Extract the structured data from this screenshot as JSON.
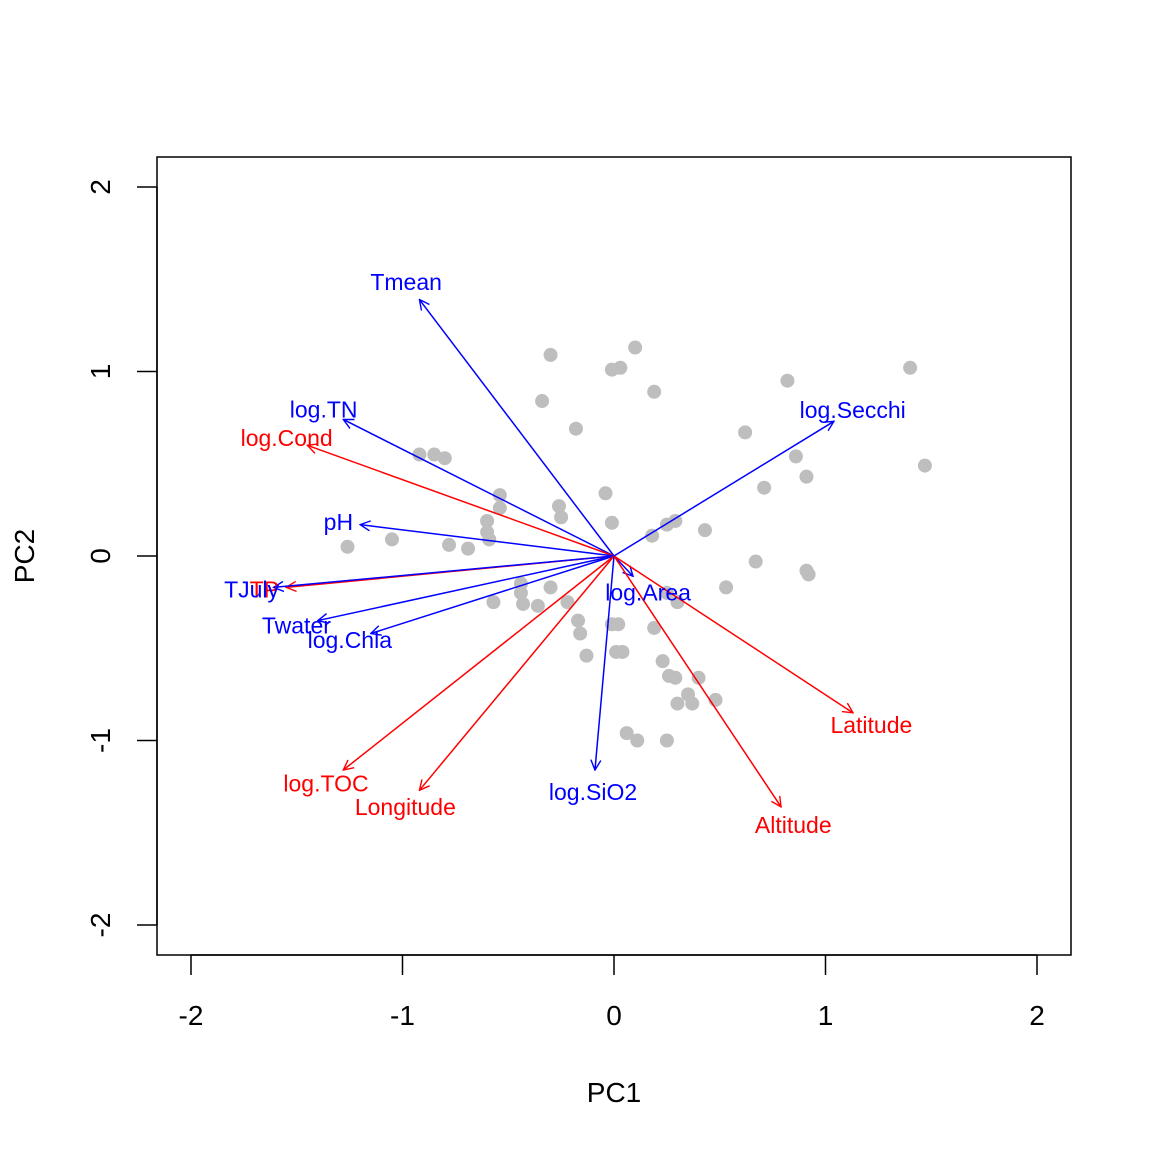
{
  "chart_data": {
    "type": "scatter",
    "subtype": "pca-biplot",
    "title": "",
    "xlabel": "PC1",
    "ylabel": "PC2",
    "xlim": [
      -2.0,
      2.0
    ],
    "ylim": [
      -2.0,
      2.0
    ],
    "x_ticks": [
      -2,
      -1,
      0,
      1,
      2
    ],
    "y_ticks": [
      -2,
      -1,
      0,
      1,
      2
    ],
    "grid": false,
    "colors": {
      "points": "#BEBEBE",
      "blue_arrows": "#0000FF",
      "red_arrows": "#FF0000",
      "frame": "#000000"
    },
    "points": [
      [
        0.1,
        1.13
      ],
      [
        -0.3,
        1.09
      ],
      [
        0.03,
        1.02
      ],
      [
        -0.01,
        1.01
      ],
      [
        0.19,
        0.89
      ],
      [
        0.82,
        0.95
      ],
      [
        1.4,
        1.02
      ],
      [
        -0.34,
        0.84
      ],
      [
        -0.18,
        0.69
      ],
      [
        0.62,
        0.67
      ],
      [
        1.47,
        0.49
      ],
      [
        0.86,
        0.54
      ],
      [
        0.91,
        0.43
      ],
      [
        0.71,
        0.37
      ],
      [
        -0.92,
        0.55
      ],
      [
        -0.85,
        0.55
      ],
      [
        -0.8,
        0.53
      ],
      [
        -0.54,
        0.33
      ],
      [
        -0.54,
        0.26
      ],
      [
        -0.26,
        0.27
      ],
      [
        -0.25,
        0.21
      ],
      [
        -0.04,
        0.34
      ],
      [
        -0.6,
        0.19
      ],
      [
        -0.6,
        0.13
      ],
      [
        -0.59,
        0.09
      ],
      [
        -0.01,
        0.18
      ],
      [
        0.18,
        0.11
      ],
      [
        0.25,
        0.17
      ],
      [
        0.29,
        0.19
      ],
      [
        0.43,
        0.14
      ],
      [
        -1.26,
        0.05
      ],
      [
        -1.05,
        0.09
      ],
      [
        -0.78,
        0.06
      ],
      [
        -0.69,
        0.04
      ],
      [
        0.67,
        -0.03
      ],
      [
        0.91,
        -0.08
      ],
      [
        0.92,
        -0.1
      ],
      [
        0.53,
        -0.17
      ],
      [
        -0.44,
        -0.15
      ],
      [
        -0.44,
        -0.2
      ],
      [
        -0.57,
        -0.25
      ],
      [
        -0.43,
        -0.26
      ],
      [
        -0.36,
        -0.27
      ],
      [
        -0.3,
        -0.17
      ],
      [
        -0.22,
        -0.25
      ],
      [
        -0.17,
        -0.35
      ],
      [
        -0.16,
        -0.42
      ],
      [
        -0.01,
        -0.37
      ],
      [
        0.02,
        -0.37
      ],
      [
        0.25,
        -0.2
      ],
      [
        0.3,
        -0.25
      ],
      [
        0.19,
        -0.39
      ],
      [
        -0.13,
        -0.54
      ],
      [
        0.01,
        -0.52
      ],
      [
        0.04,
        -0.52
      ],
      [
        0.23,
        -0.57
      ],
      [
        0.26,
        -0.65
      ],
      [
        0.29,
        -0.66
      ],
      [
        0.4,
        -0.66
      ],
      [
        0.35,
        -0.75
      ],
      [
        0.3,
        -0.8
      ],
      [
        0.37,
        -0.8
      ],
      [
        0.48,
        -0.78
      ],
      [
        0.06,
        -0.96
      ],
      [
        0.11,
        -1.0
      ],
      [
        0.25,
        -1.0
      ]
    ],
    "arrows": [
      {
        "label": "Tmean",
        "color": "#0000FF",
        "x": -0.92,
        "y": 1.39
      },
      {
        "label": "log.TN",
        "color": "#0000FF",
        "x": -1.28,
        "y": 0.74
      },
      {
        "label": "log.Cond",
        "color": "#FF0000",
        "x": -1.45,
        "y": 0.6
      },
      {
        "label": "pH",
        "color": "#0000FF",
        "x": -1.2,
        "y": 0.17
      },
      {
        "label": "TP",
        "color": "#FF0000",
        "x": -1.55,
        "y": -0.17
      },
      {
        "label": "TJuly",
        "color": "#0000FF",
        "x": -1.61,
        "y": -0.17
      },
      {
        "label": "Twater",
        "color": "#0000FF",
        "x": -1.4,
        "y": -0.35
      },
      {
        "label": "log.Chla",
        "color": "#0000FF",
        "x": -1.15,
        "y": -0.42
      },
      {
        "label": "log.TOC",
        "color": "#FF0000",
        "x": -1.28,
        "y": -1.16
      },
      {
        "label": "Longitude",
        "color": "#FF0000",
        "x": -0.92,
        "y": -1.27
      },
      {
        "label": "log.SiO2",
        "color": "#0000FF",
        "x": -0.09,
        "y": -1.16
      },
      {
        "label": "log.Area",
        "color": "#0000FF",
        "x": 0.09,
        "y": -0.11
      },
      {
        "label": "Latitude",
        "color": "#FF0000",
        "x": 1.13,
        "y": -0.85
      },
      {
        "label": "Altitude",
        "color": "#FF0000",
        "x": 0.79,
        "y": -1.36
      },
      {
        "label": "log.Secchi",
        "color": "#0000FF",
        "x": 1.04,
        "y": 0.73
      }
    ]
  }
}
